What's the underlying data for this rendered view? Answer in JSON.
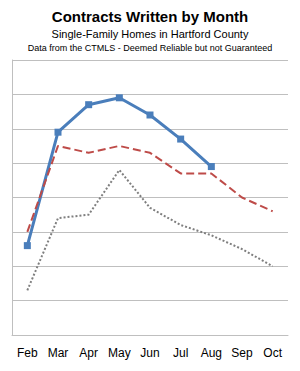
{
  "chart_data": {
    "type": "line",
    "title": "Contracts Written by Month",
    "subtitle": "Single-Family Homes in Hartford County",
    "annotations": [
      "Data from the CTMLS - Deemed Reliable but not Guaranteed"
    ],
    "categories": [
      "Feb",
      "Mar",
      "Apr",
      "May",
      "Jun",
      "Jul",
      "Aug",
      "Sep",
      "Oct"
    ],
    "series": [
      {
        "color": "#4a7ebb",
        "marker": "square",
        "line_style": "solid",
        "values": [
          660,
          990,
          1070,
          1090,
          1040,
          970,
          890,
          null,
          null
        ]
      },
      {
        "color": "#be4b48",
        "marker": "none",
        "line_style": "dashed",
        "values": [
          700,
          950,
          930,
          950,
          930,
          870,
          870,
          800,
          760
        ]
      },
      {
        "color": "#7f7f7f",
        "marker": "none",
        "line_style": "dotted",
        "values": [
          530,
          740,
          750,
          880,
          770,
          720,
          690,
          650,
          600
        ]
      }
    ],
    "ylim": [
      400,
      1200
    ],
    "yticks": [
      400,
      500,
      600,
      700,
      800,
      900,
      1000,
      1100,
      1200
    ],
    "grid": true,
    "tick_labels": "x"
  }
}
